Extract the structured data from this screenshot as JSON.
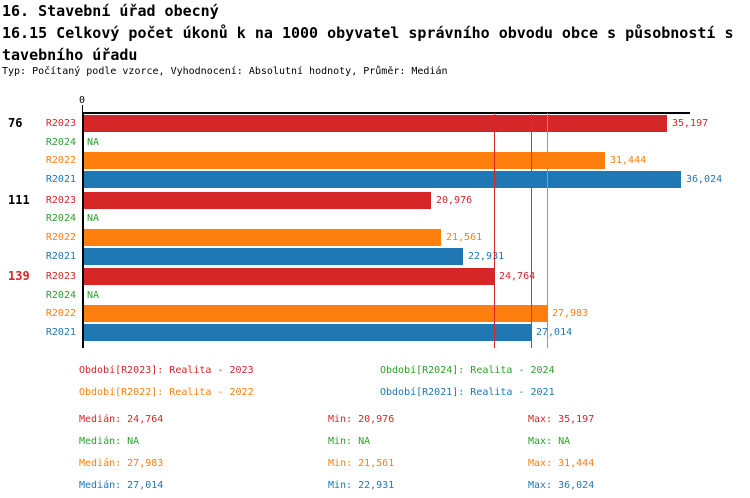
{
  "page": {
    "title_line1": "16. Stavební úřad obecný",
    "title_line2": "16.15 Celkový počet úkonů k na 1000 obyvatel správního obvodu obce s působností s",
    "title_line3": "tavebního úřadu",
    "subtitle": "Typ: Počítaný podle vzorce, Vyhodnocení: Absolutní hodnoty, Průměr: Medián"
  },
  "colors": {
    "r2023": "#d62728",
    "r2024": "#2ca02c",
    "r2022": "#ff7f0e",
    "r2021": "#1f77b4",
    "axis": "#000000",
    "group_label_default": "#000000",
    "group_label_highlight": "#d62728"
  },
  "chart_data": {
    "type": "bar",
    "orientation": "horizontal",
    "x_axis": {
      "origin_tick_label": "0",
      "min": 0,
      "max": 36.57,
      "gridlines": false
    },
    "series_order": [
      "R2023",
      "R2024",
      "R2022",
      "R2021"
    ],
    "na_text": "NA",
    "groups": [
      {
        "label": "76",
        "highlight": false,
        "bars": [
          {
            "series": "R2023",
            "value": 35.197,
            "display": "35,197",
            "color_key": "r2023"
          },
          {
            "series": "R2024",
            "value": null,
            "display": "NA",
            "color_key": "r2024"
          },
          {
            "series": "R2022",
            "value": 31.444,
            "display": "31,444",
            "color_key": "r2022"
          },
          {
            "series": "R2021",
            "value": 36.024,
            "display": "36,024",
            "color_key": "r2021"
          }
        ]
      },
      {
        "label": "111",
        "highlight": false,
        "bars": [
          {
            "series": "R2023",
            "value": 20.976,
            "display": "20,976",
            "color_key": "r2023"
          },
          {
            "series": "R2024",
            "value": null,
            "display": "NA",
            "color_key": "r2024"
          },
          {
            "series": "R2022",
            "value": 21.561,
            "display": "21,561",
            "color_key": "r2022"
          },
          {
            "series": "R2021",
            "value": 22.931,
            "display": "22,931",
            "color_key": "r2021"
          }
        ]
      },
      {
        "label": "139",
        "highlight": true,
        "bars": [
          {
            "series": "R2023",
            "value": 24.764,
            "display": "24,764",
            "color_key": "r2023"
          },
          {
            "series": "R2024",
            "value": null,
            "display": "NA",
            "color_key": "r2024"
          },
          {
            "series": "R2022",
            "value": 27.983,
            "display": "27,983",
            "color_key": "r2022"
          },
          {
            "series": "R2021",
            "value": 27.014,
            "display": "27,014",
            "color_key": "r2021"
          }
        ]
      }
    ],
    "median_lines": [
      {
        "series": "R2023",
        "value": 24.764,
        "color_key": "r2023"
      },
      {
        "series": "R2021",
        "value": 27.014,
        "color_key": "r2021"
      },
      {
        "series": "R2022",
        "value": 27.983,
        "color_key": "r2022"
      }
    ]
  },
  "legend": {
    "items": [
      {
        "label": "Období[R2023]: Realita - 2023",
        "color_key": "r2023",
        "col": 0,
        "row": 0
      },
      {
        "label": "Období[R2024]: Realita - 2024",
        "color_key": "r2024",
        "col": 1,
        "row": 0
      },
      {
        "label": "Období[R2022]: Realita - 2022",
        "color_key": "r2022",
        "col": 0,
        "row": 1
      },
      {
        "label": "Období[R2021]: Realita - 2021",
        "color_key": "r2021",
        "col": 1,
        "row": 1
      }
    ]
  },
  "stats": {
    "rows": [
      {
        "color_key": "r2023",
        "median": "Medián: 24,764",
        "min": "Min: 20,976",
        "max": "Max: 35,197"
      },
      {
        "color_key": "r2024",
        "median": "Medián: NA",
        "min": "Min: NA",
        "max": "Max: NA"
      },
      {
        "color_key": "r2022",
        "median": "Medián: 27,983",
        "min": "Min: 21,561",
        "max": "Max: 31,444"
      },
      {
        "color_key": "r2021",
        "median": "Medián: 27,014",
        "min": "Min: 22,931",
        "max": "Max: 36,024"
      }
    ]
  }
}
